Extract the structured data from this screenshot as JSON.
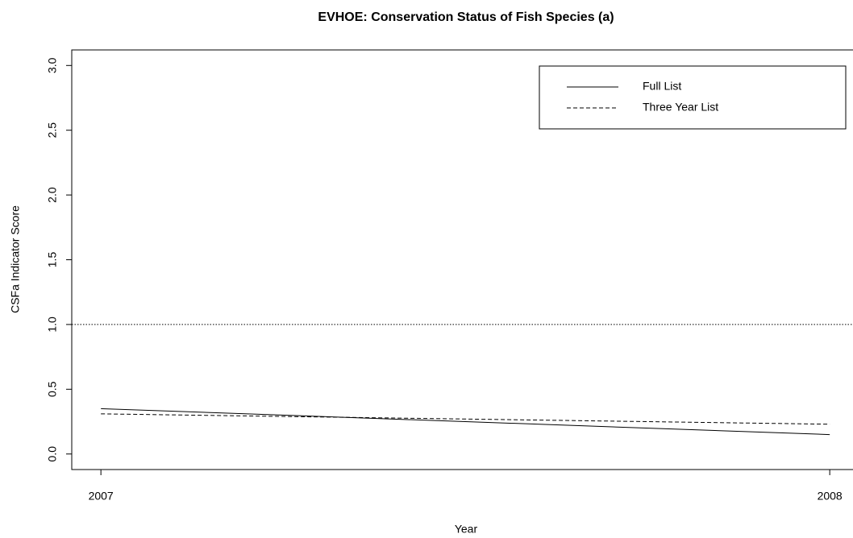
{
  "chart_data": {
    "type": "line",
    "title": "EVHOE: Conservation Status of Fish Species (a)",
    "x_label": "Year",
    "y_label": "CSFa Indicator Score",
    "x": [
      2007,
      2008
    ],
    "series": [
      {
        "name": "Full List",
        "color": "#000000",
        "dash": "solid",
        "values": [
          0.35,
          0.15
        ]
      },
      {
        "name": "Three Year List",
        "color": "#000000",
        "dash": "dashed",
        "values": [
          0.31,
          0.23
        ]
      }
    ],
    "reference_line": 1,
    "xlim": [
      2006.96,
      2008.04
    ],
    "ylim": [
      -0.12,
      3.12
    ],
    "xticks": [
      2007,
      2008
    ],
    "yticks": [
      {
        "value": 0,
        "label": "0.0"
      },
      {
        "value": 0.5,
        "label": "0.5"
      },
      {
        "value": 1,
        "label": "1.0"
      },
      {
        "value": 1.5,
        "label": "1.5"
      },
      {
        "value": 2,
        "label": "2.0"
      },
      {
        "value": 2.5,
        "label": "2.5"
      },
      {
        "value": 3,
        "label": "3.0"
      }
    ],
    "legend": "top-right"
  }
}
